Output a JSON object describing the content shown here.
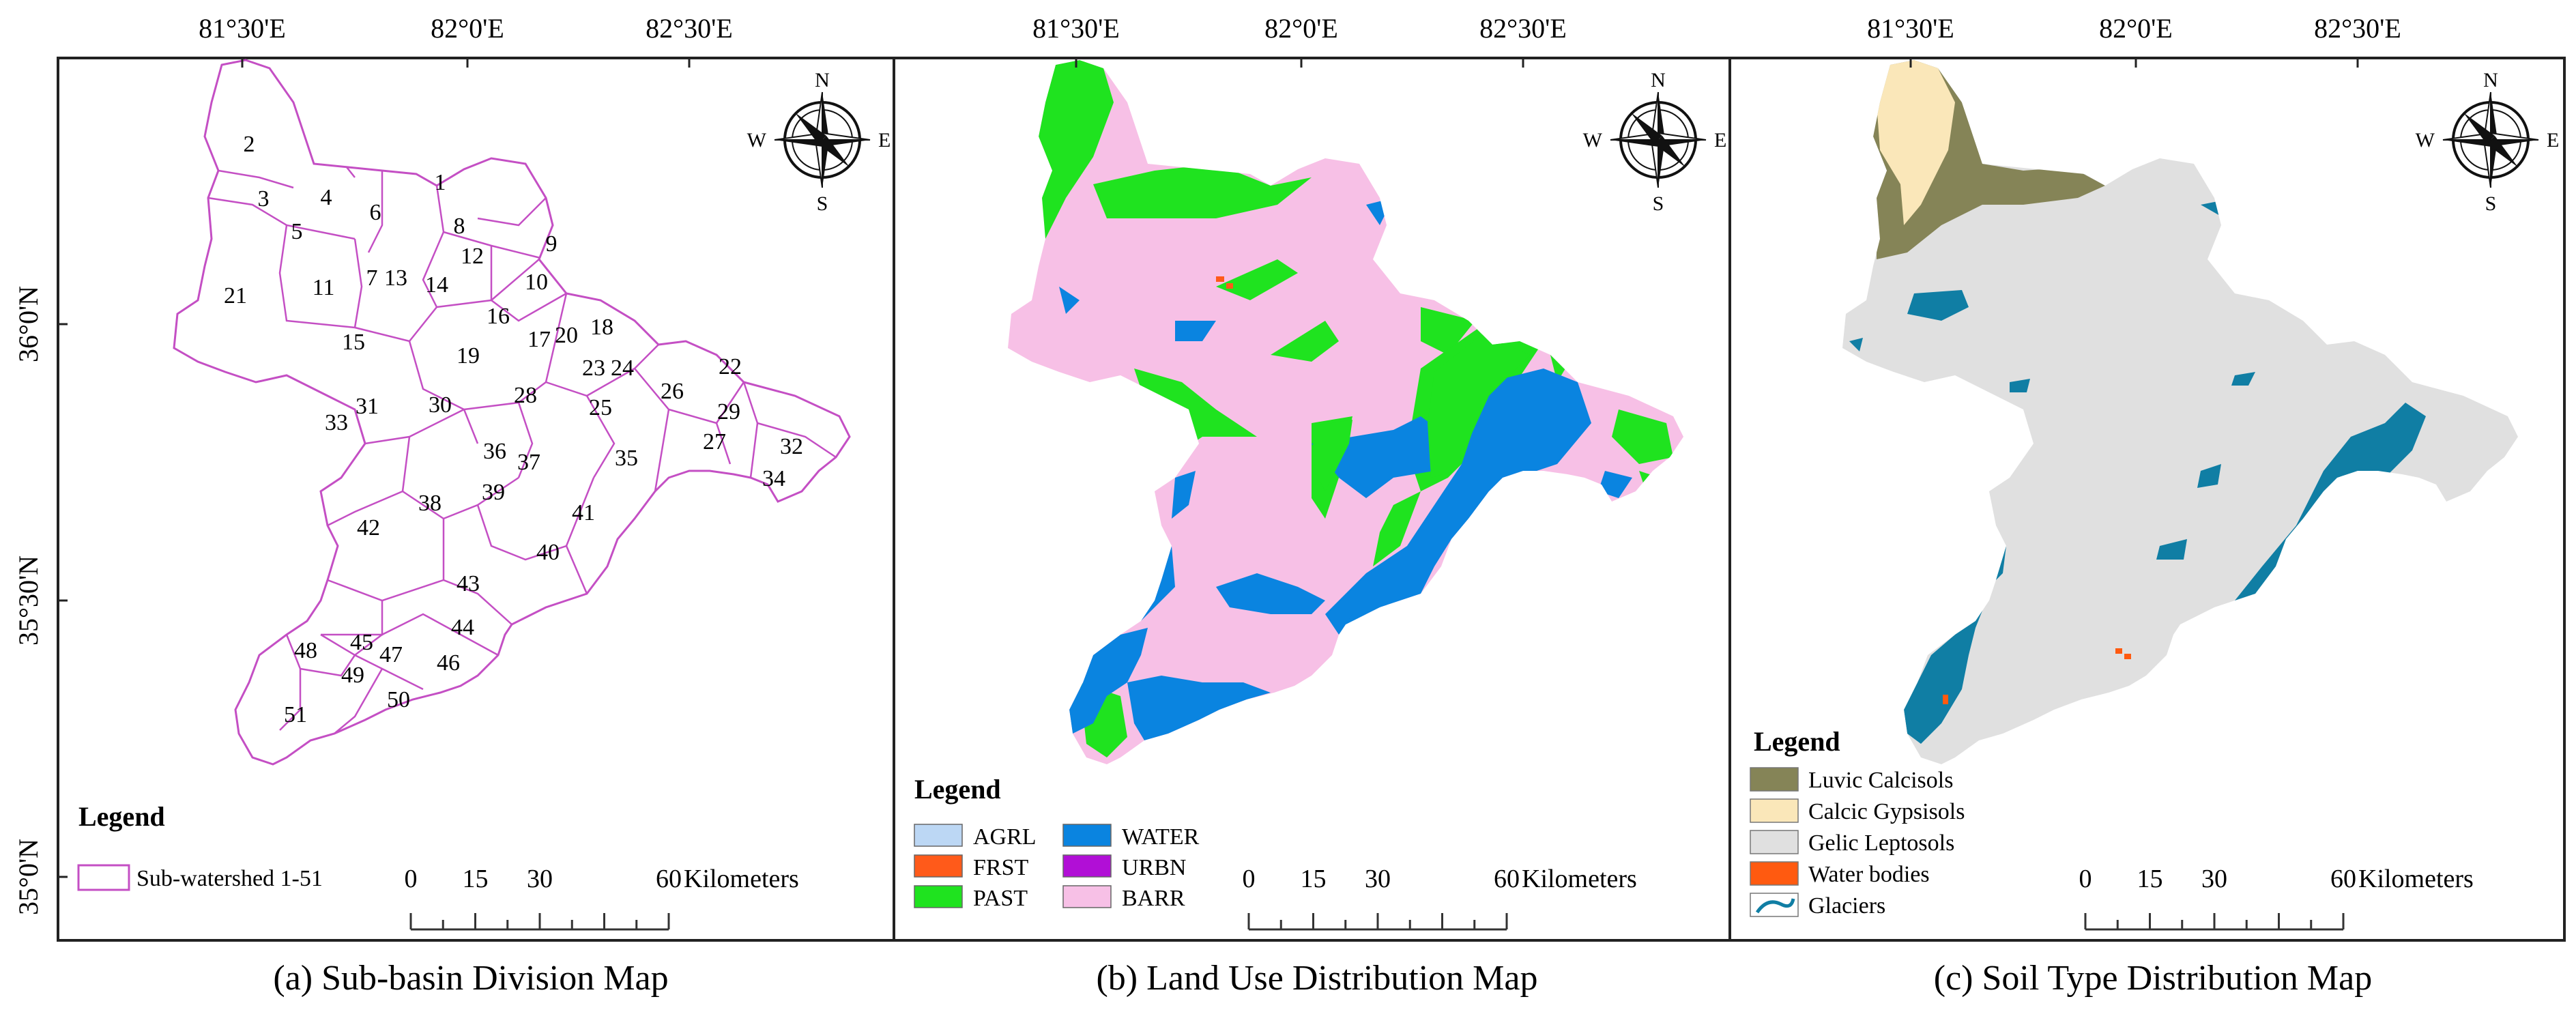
{
  "colors": {
    "subbasin_outline": "#c44fc4",
    "agrl": "#bcd7f4",
    "frst": "#ff5a1a",
    "past": "#1fe31f",
    "water": "#0a84e0",
    "urbn": "#b10fd6",
    "barr": "#f7c0e6",
    "luvic": "#858457",
    "calcic": "#fae7b9",
    "gelic": "#e0e0e0",
    "waterbodies": "#ff5a10",
    "glaciers": "#107ea4"
  },
  "lon_ticks": [
    "81°30'E",
    "82°0'E",
    "82°30'E"
  ],
  "lat_ticks": [
    "36°0'N",
    "35°30'N",
    "35°0'N"
  ],
  "compass": {
    "n": "N",
    "s": "S",
    "e": "E",
    "w": "W"
  },
  "panels": [
    {
      "caption": "(a) Sub-basin Division Map",
      "legend_title": "Legend",
      "legend_items": [
        {
          "label": "Sub-watershed 1-51",
          "symbol": "outline"
        }
      ],
      "scale": {
        "ticks": [
          "0",
          "15",
          "30",
          "60"
        ],
        "unit": "Kilometers"
      },
      "subbasin_numbers": [
        "1",
        "2",
        "3",
        "4",
        "5",
        "6",
        "7",
        "8",
        "9",
        "10",
        "11",
        "12",
        "13",
        "14",
        "15",
        "16",
        "17",
        "18",
        "19",
        "20",
        "21",
        "22",
        "23",
        "24",
        "25",
        "26",
        "27",
        "28",
        "29",
        "30",
        "31",
        "32",
        "33",
        "34",
        "35",
        "36",
        "37",
        "38",
        "39",
        "40",
        "41",
        "42",
        "43",
        "44",
        "45",
        "46",
        "47",
        "48",
        "49",
        "50",
        "51"
      ]
    },
    {
      "caption": "(b) Land Use Distribution Map",
      "legend_title": "Legend",
      "legend_items": [
        {
          "label": "AGRL",
          "color": "#bcd7f4"
        },
        {
          "label": "WATER",
          "color": "#0a84e0"
        },
        {
          "label": "FRST",
          "color": "#ff5a1a"
        },
        {
          "label": "URBN",
          "color": "#b10fd6"
        },
        {
          "label": "PAST",
          "color": "#1fe31f"
        },
        {
          "label": "BARR",
          "color": "#f7c0e6"
        }
      ],
      "scale": {
        "ticks": [
          "0",
          "15",
          "30",
          "60"
        ],
        "unit": "Kilometers"
      }
    },
    {
      "caption": "(c) Soil Type Distribution Map",
      "legend_title": "Legend",
      "legend_items": [
        {
          "label": "Luvic Calcisols",
          "color": "#858457"
        },
        {
          "label": "Calcic Gypsisols",
          "color": "#fae7b9"
        },
        {
          "label": "Gelic Leptosols",
          "color": "#e0e0e0"
        },
        {
          "label": "Water bodies",
          "color": "#ff5a10"
        },
        {
          "label": "Glaciers",
          "color": "#107ea4"
        }
      ],
      "scale": {
        "ticks": [
          "0",
          "15",
          "30",
          "60"
        ],
        "unit": "Kilometers"
      }
    }
  ]
}
